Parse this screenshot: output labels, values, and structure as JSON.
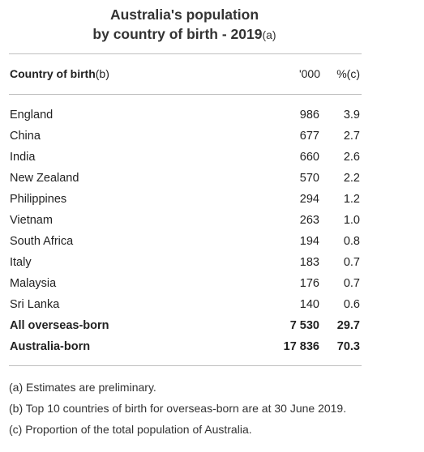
{
  "title": {
    "line1": "Australia's population",
    "line2": "by country of birth - 2019",
    "line2_suffix": "(a)"
  },
  "table": {
    "headers": {
      "country": "Country of birth",
      "country_suffix": "(b)",
      "count": "'000",
      "percent": "%(c)"
    },
    "rows": [
      {
        "country": "England",
        "count": "986",
        "percent": "3.9"
      },
      {
        "country": "China",
        "count": "677",
        "percent": "2.7"
      },
      {
        "country": "India",
        "count": "660",
        "percent": "2.6"
      },
      {
        "country": "New Zealand",
        "count": "570",
        "percent": "2.2"
      },
      {
        "country": "Philippines",
        "count": "294",
        "percent": "1.2"
      },
      {
        "country": "Vietnam",
        "count": "263",
        "percent": "1.0"
      },
      {
        "country": "South Africa",
        "count": "194",
        "percent": "0.8"
      },
      {
        "country": "Italy",
        "count": "183",
        "percent": "0.7"
      },
      {
        "country": "Malaysia",
        "count": "176",
        "percent": "0.7"
      },
      {
        "country": "Sri Lanka",
        "count": "140",
        "percent": "0.6"
      }
    ],
    "totals": [
      {
        "country": "All overseas-born",
        "count": "7 530",
        "percent": "29.7"
      },
      {
        "country": "Australia-born",
        "count": "17 836",
        "percent": "70.3"
      }
    ]
  },
  "notes": [
    "(a) Estimates are preliminary.",
    "(b) Top 10 countries of birth for overseas-born are at 30 June 2019.",
    "(c) Proportion of the total population of Australia."
  ]
}
